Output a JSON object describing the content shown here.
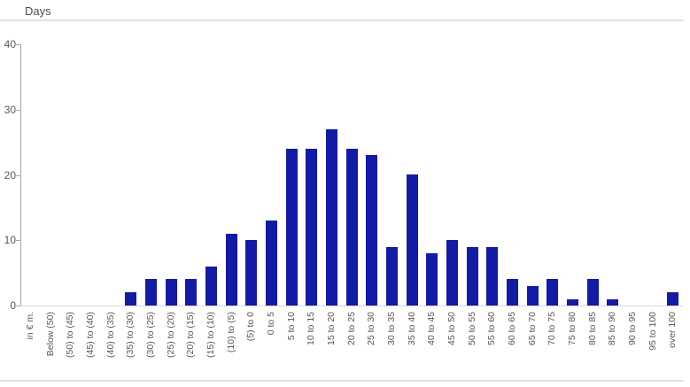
{
  "chart_data": {
    "type": "bar",
    "title": "Days",
    "x_unit_label": "in € m.",
    "categories": [
      "Below (50)",
      "(50) to (45)",
      "(45) to (40)",
      "(40) to (35)",
      "(35) to (30)",
      "(30) to (25)",
      "(25) to (20)",
      "(20) to (15)",
      "(15) to (10)",
      "(10) to (5)",
      "(5) to 0",
      "0 to 5",
      "5 to 10",
      "10 to 15",
      "15 to 20",
      "20 to 25",
      "25 to 30",
      "30 to 35",
      "35 to 40",
      "40 to 45",
      "45 to 50",
      "50 to 55",
      "55 to 60",
      "60 to 65",
      "65 to 70",
      "70 to 75",
      "75 to 80",
      "80 to 85",
      "85 to 90",
      "90 to 95",
      "95 to 100",
      "over 100"
    ],
    "values": [
      0,
      0,
      0,
      0,
      2,
      4,
      4,
      4,
      6,
      11,
      10,
      13,
      24,
      24,
      27,
      24,
      23,
      9,
      20,
      8,
      10,
      9,
      9,
      4,
      3,
      4,
      1,
      4,
      1,
      0,
      0,
      2
    ],
    "yticks": [
      0,
      10,
      20,
      30,
      40
    ],
    "ylim": [
      0,
      40
    ],
    "grid": false,
    "legend": null,
    "colors": {
      "bar": "#131aa6",
      "axis": "#a6a6a6",
      "baseline": "#d9d9d9",
      "tick_text": "#595959",
      "title_text": "#4d4d4d",
      "divider": "#e1e1e8"
    }
  }
}
